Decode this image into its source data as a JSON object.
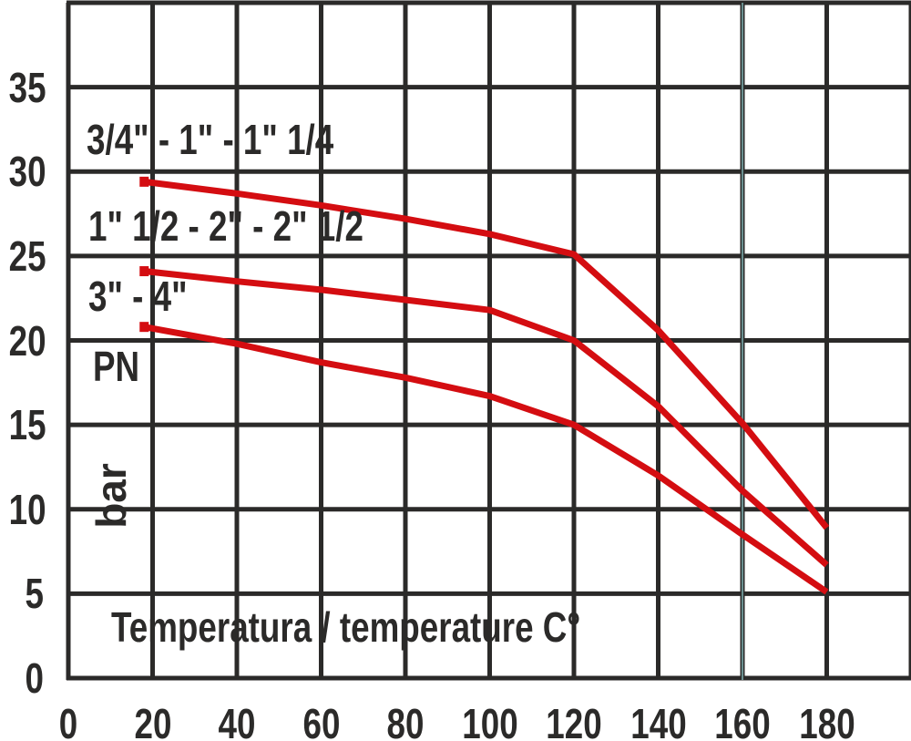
{
  "chart_data": {
    "type": "line",
    "xlabel": "Temperatura / temperature C°",
    "ylabel": "PN",
    "y_unit": "bar",
    "x_range": [
      0,
      200
    ],
    "y_range": [
      0,
      40
    ],
    "x_tick_step": 20,
    "y_tick_step": 5,
    "x_ticks": [
      0,
      20,
      40,
      60,
      80,
      100,
      120,
      140,
      160,
      180
    ],
    "y_ticks": [
      0,
      5,
      10,
      15,
      20,
      25,
      30,
      35
    ],
    "grid": true,
    "legend_position": "on-chart-labels",
    "highlight_gridline_x": 160,
    "series": [
      {
        "name": "3/4\" - 1\" - 1\" 1/4",
        "points": [
          [
            18,
            29.4
          ],
          [
            40,
            28.7
          ],
          [
            60,
            28.0
          ],
          [
            80,
            27.2
          ],
          [
            100,
            26.3
          ],
          [
            120,
            25.1
          ],
          [
            140,
            20.6
          ],
          [
            160,
            15.1
          ],
          [
            180,
            8.9
          ]
        ]
      },
      {
        "name": "1\" 1/2 - 2\" - 2\" 1/2",
        "points": [
          [
            18,
            24.1
          ],
          [
            40,
            23.5
          ],
          [
            60,
            23.0
          ],
          [
            80,
            22.4
          ],
          [
            100,
            21.8
          ],
          [
            120,
            20.0
          ],
          [
            140,
            16.1
          ],
          [
            160,
            11.1
          ],
          [
            180,
            6.7
          ]
        ]
      },
      {
        "name": "3\" - 4\"",
        "points": [
          [
            18,
            20.8
          ],
          [
            40,
            19.8
          ],
          [
            60,
            18.7
          ],
          [
            80,
            17.8
          ],
          [
            100,
            16.7
          ],
          [
            120,
            15.0
          ],
          [
            140,
            12.0
          ],
          [
            160,
            8.5
          ],
          [
            180,
            5.1
          ]
        ]
      }
    ],
    "colors": {
      "curve": "#d40d11",
      "grid": "#2b2a29",
      "text": "#2b2a29",
      "highlight_gridline": "#6a8f8f",
      "background": "#ffffff"
    }
  }
}
